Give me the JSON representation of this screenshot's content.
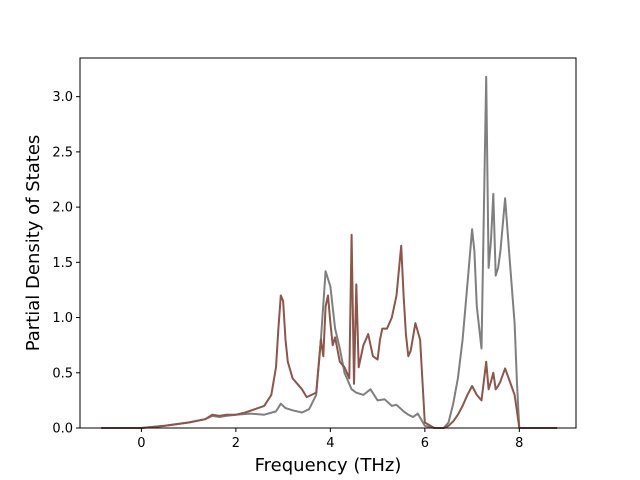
{
  "chart_data": {
    "type": "line",
    "title": "",
    "xlabel": "Frequency (THz)",
    "ylabel": "Partial Density of States",
    "xlim": [
      -1.3,
      9.2
    ],
    "ylim": [
      0.0,
      3.35
    ],
    "xticks": [
      0,
      2,
      4,
      6,
      8
    ],
    "xtick_labels": [
      "0",
      "2",
      "4",
      "6",
      "8"
    ],
    "yticks": [
      0.0,
      0.5,
      1.0,
      1.5,
      2.0,
      2.5,
      3.0
    ],
    "ytick_labels": [
      "0.0",
      "0.5",
      "1.0",
      "1.5",
      "2.0",
      "2.5",
      "3.0"
    ],
    "grid": false,
    "legend": "none",
    "series": [
      {
        "color": "#7f7f7f",
        "x": [
          -0.85,
          0.0,
          0.5,
          1.0,
          1.35,
          1.5,
          1.65,
          1.8,
          2.0,
          2.3,
          2.6,
          2.85,
          2.95,
          3.05,
          3.2,
          3.4,
          3.55,
          3.7,
          3.8,
          3.9,
          4.0,
          4.1,
          4.2,
          4.3,
          4.45,
          4.55,
          4.7,
          4.85,
          5.0,
          5.15,
          5.3,
          5.4,
          5.55,
          5.65,
          5.75,
          5.85,
          6.0,
          6.2,
          6.4,
          6.5,
          6.6,
          6.7,
          6.8,
          6.9,
          7.0,
          7.05,
          7.1,
          7.2,
          7.3,
          7.35,
          7.4,
          7.45,
          7.5,
          7.55,
          7.6,
          7.7,
          7.8,
          7.9,
          7.95,
          8.0,
          8.1,
          8.8
        ],
        "y": [
          0.0,
          0.0,
          0.02,
          0.05,
          0.08,
          0.11,
          0.1,
          0.11,
          0.12,
          0.13,
          0.12,
          0.15,
          0.22,
          0.18,
          0.16,
          0.14,
          0.17,
          0.3,
          0.8,
          1.42,
          1.28,
          0.9,
          0.72,
          0.5,
          0.35,
          0.32,
          0.3,
          0.35,
          0.25,
          0.26,
          0.2,
          0.21,
          0.15,
          0.12,
          0.1,
          0.13,
          0.02,
          0.0,
          0.0,
          0.05,
          0.22,
          0.45,
          0.8,
          1.3,
          1.8,
          1.6,
          1.1,
          0.72,
          3.18,
          1.45,
          1.7,
          2.12,
          1.38,
          1.45,
          1.6,
          2.08,
          1.5,
          0.95,
          0.4,
          0.0,
          0.0,
          0.0
        ]
      },
      {
        "color": "#8c564b",
        "x": [
          -0.85,
          0.0,
          0.5,
          1.0,
          1.35,
          1.5,
          1.65,
          1.8,
          2.0,
          2.2,
          2.4,
          2.6,
          2.75,
          2.85,
          2.9,
          2.95,
          3.0,
          3.05,
          3.1,
          3.2,
          3.3,
          3.4,
          3.5,
          3.6,
          3.7,
          3.8,
          3.85,
          3.9,
          3.95,
          4.0,
          4.05,
          4.1,
          4.2,
          4.3,
          4.4,
          4.45,
          4.5,
          4.55,
          4.6,
          4.7,
          4.8,
          4.9,
          5.0,
          5.05,
          5.1,
          5.2,
          5.3,
          5.4,
          5.5,
          5.55,
          5.6,
          5.65,
          5.7,
          5.8,
          5.9,
          6.0,
          6.2,
          6.4,
          6.5,
          6.6,
          6.7,
          6.8,
          6.9,
          7.0,
          7.1,
          7.2,
          7.3,
          7.35,
          7.4,
          7.45,
          7.5,
          7.55,
          7.6,
          7.7,
          7.8,
          7.9,
          7.95,
          8.0,
          8.1,
          8.8
        ],
        "y": [
          0.0,
          0.0,
          0.02,
          0.05,
          0.08,
          0.12,
          0.11,
          0.12,
          0.12,
          0.14,
          0.17,
          0.2,
          0.3,
          0.55,
          0.9,
          1.2,
          1.15,
          0.8,
          0.6,
          0.45,
          0.4,
          0.35,
          0.28,
          0.3,
          0.32,
          0.8,
          0.65,
          1.1,
          1.2,
          0.95,
          0.75,
          0.82,
          0.6,
          0.55,
          0.45,
          1.75,
          0.4,
          1.3,
          0.55,
          0.75,
          0.85,
          0.65,
          0.62,
          0.8,
          0.9,
          0.9,
          1.0,
          1.2,
          1.65,
          1.2,
          0.85,
          0.65,
          0.7,
          0.95,
          0.8,
          0.05,
          0.0,
          0.0,
          0.02,
          0.06,
          0.12,
          0.2,
          0.3,
          0.38,
          0.3,
          0.25,
          0.6,
          0.35,
          0.42,
          0.5,
          0.35,
          0.38,
          0.42,
          0.54,
          0.42,
          0.3,
          0.15,
          0.0,
          0.0,
          0.0
        ]
      }
    ]
  }
}
